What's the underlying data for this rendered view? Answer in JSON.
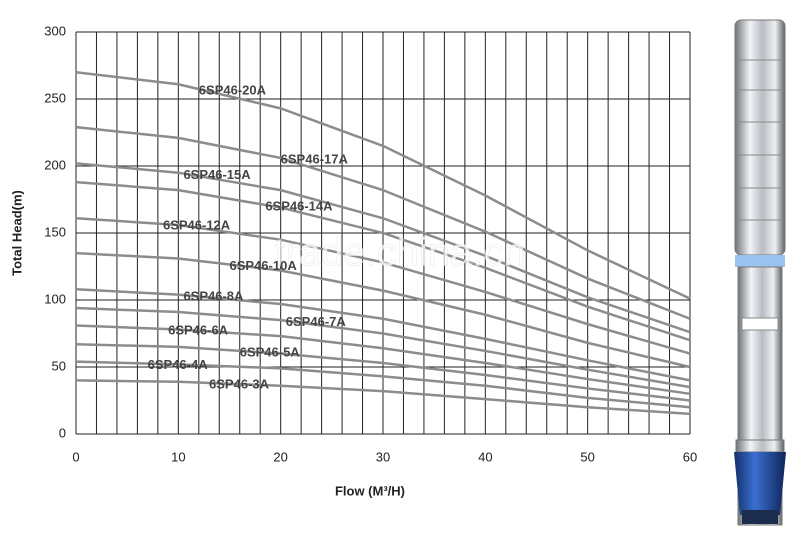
{
  "chart_data": {
    "type": "line",
    "x_label": "Flow (M³/H)",
    "y_label": "Total Head(m)",
    "watermark": "trade.china.cn",
    "x": [
      0,
      10,
      20,
      30,
      40,
      50,
      60
    ],
    "xlim": [
      0,
      60
    ],
    "ylim": [
      0,
      300
    ],
    "xticks": [
      0,
      10,
      20,
      30,
      40,
      50,
      60
    ],
    "yticks": [
      0,
      50,
      100,
      150,
      200,
      250,
      300
    ],
    "xgrid": [
      0,
      2,
      4,
      6,
      8,
      10,
      12,
      14,
      16,
      18,
      20,
      22,
      24,
      26,
      28,
      30,
      32,
      34,
      36,
      38,
      40,
      42,
      44,
      46,
      48,
      50,
      52,
      54,
      56,
      58,
      60
    ],
    "grid": true,
    "series": [
      {
        "name": "6SP46-20A",
        "color": "#8c8c8c",
        "values": [
          270,
          261,
          243,
          215,
          178,
          137,
          101
        ]
      },
      {
        "name": "6SP46-17A",
        "color": "#8c8c8c",
        "values": [
          229,
          221,
          206,
          182,
          151,
          116,
          86
        ]
      },
      {
        "name": "6SP46-15A",
        "color": "#8c8c8c",
        "values": [
          202,
          195,
          182,
          161,
          133,
          102,
          76
        ]
      },
      {
        "name": "6SP46-14A",
        "color": "#8c8c8c",
        "values": [
          188,
          182,
          169,
          150,
          124,
          95,
          70
        ]
      },
      {
        "name": "6SP46-12A",
        "color": "#8c8c8c",
        "values": [
          161,
          156,
          145,
          128,
          106,
          82,
          60
        ]
      },
      {
        "name": "6SP46-10A",
        "color": "#8c8c8c",
        "values": [
          135,
          131,
          122,
          107,
          89,
          68,
          50
        ]
      },
      {
        "name": "6SP46-8A",
        "color": "#8c8c8c",
        "values": [
          108,
          104,
          97,
          86,
          71,
          55,
          40
        ]
      },
      {
        "name": "6SP46-7A",
        "color": "#8c8c8c",
        "values": [
          94,
          91,
          85,
          75,
          62,
          48,
          35
        ]
      },
      {
        "name": "6SP46-6A",
        "color": "#8c8c8c",
        "values": [
          81,
          78,
          73,
          64,
          53,
          41,
          30
        ]
      },
      {
        "name": "6SP46-5A",
        "color": "#8c8c8c",
        "values": [
          67,
          65,
          60,
          53,
          44,
          34,
          25
        ]
      },
      {
        "name": "6SP46-4A",
        "color": "#8c8c8c",
        "values": [
          54,
          52,
          49,
          43,
          36,
          27,
          20
        ]
      },
      {
        "name": "6SP46-3A",
        "color": "#8c8c8c",
        "values": [
          40,
          39,
          36,
          32,
          26,
          20,
          15
        ]
      }
    ]
  }
}
